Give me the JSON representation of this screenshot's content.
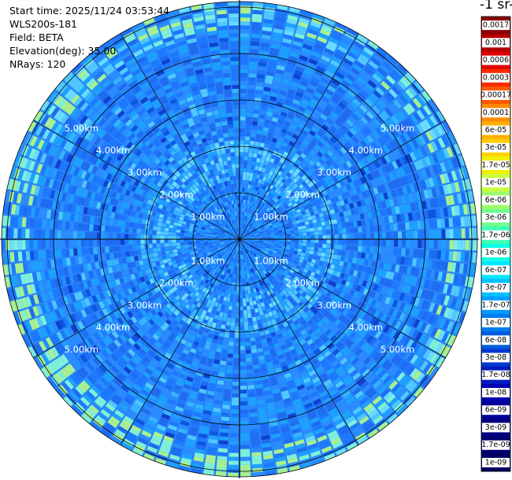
{
  "info": {
    "start_time": "Start time: 2025/11/24 03:53:44",
    "instrument": "WLS200s-181",
    "field": "Field: BETA",
    "elevation": "Elevation(deg): 35.00",
    "nrays": "NRays: 120"
  },
  "colorbar": {
    "title_fragment": "-1 sr-",
    "labels": [
      "0.0017",
      "0.001",
      "0.0006",
      "0.0003",
      "0.00017",
      "0.0001",
      "6e-05",
      "3e-05",
      "1.7e-05",
      "1e-05",
      "6e-06",
      "3e-06",
      "1.7e-06",
      "1e-06",
      "6e-07",
      "3e-07",
      "1.7e-07",
      "1e-07",
      "6e-08",
      "3e-08",
      "1.7e-08",
      "1e-08",
      "6e-09",
      "3e-09",
      "1.7e-09",
      "1e-09"
    ],
    "colors": [
      "#8b0000",
      "#b40000",
      "#e00000",
      "#ff2a00",
      "#ff5a00",
      "#ff8a00",
      "#ffb000",
      "#ffd000",
      "#f0f000",
      "#c8ff40",
      "#9cff6a",
      "#70ff8f",
      "#40ffb8",
      "#10ffe4",
      "#00e8ff",
      "#00c0ff",
      "#009cff",
      "#007cf0",
      "#005ce0",
      "#0038d0",
      "#001cc0",
      "#0000b0",
      "#000098",
      "#000080",
      "#000070",
      "#000060"
    ]
  },
  "chart_data": {
    "type": "polar-ppi",
    "field": "BETA",
    "elevation_deg": 35.0,
    "n_rays": 120,
    "range_rings_km": [
      1,
      2,
      3,
      4,
      5
    ],
    "range_ring_labels": [
      "1.00km",
      "2.00km",
      "3.00km",
      "4.00km",
      "5.00km"
    ],
    "max_range_km": 5.2,
    "value_scale": "log",
    "dominant_value_range": [
      "3e-08",
      "1e-07"
    ]
  }
}
